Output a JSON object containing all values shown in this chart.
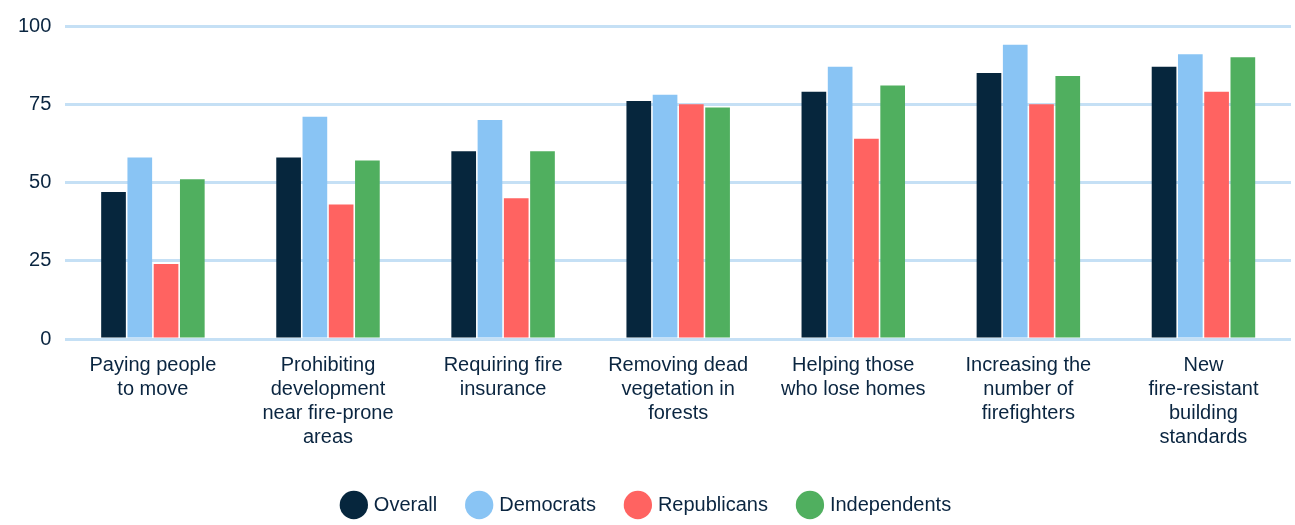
{
  "chart_data": {
    "type": "bar",
    "categories": [
      "Paying people to move",
      "Prohibiting development near fire-prone areas",
      "Requiring fire insurance",
      "Removing dead vegetation in forests",
      "Helping those who lose homes",
      "Increasing the number of firefighters",
      "New fire-resistant building standards"
    ],
    "series": [
      {
        "name": "Overall",
        "color": "#06263d",
        "values": [
          47,
          58,
          60,
          76,
          79,
          85,
          87
        ]
      },
      {
        "name": "Democrats",
        "color": "#89c4f4",
        "values": [
          58,
          71,
          70,
          78,
          87,
          94,
          91
        ]
      },
      {
        "name": "Republicans",
        "color": "#ff6361",
        "values": [
          24,
          43,
          45,
          75,
          64,
          75,
          79
        ]
      },
      {
        "name": "Independents",
        "color": "#50af5f",
        "values": [
          51,
          57,
          60,
          74,
          81,
          84,
          90
        ]
      }
    ],
    "ylim": [
      0,
      100
    ],
    "yticks": [
      0,
      25,
      50,
      75,
      100
    ],
    "grid": "y",
    "legend": "bottom"
  }
}
